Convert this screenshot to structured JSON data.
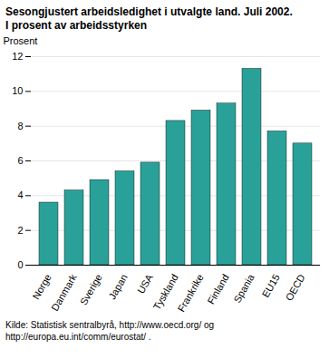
{
  "chart_data": {
    "type": "bar",
    "title": "Sesongjustert arbeidsledighet i utvalgte land. Juli 2002.",
    "subtitle": "I prosent av arbeidsstyrken",
    "y_label": "Prosent",
    "caption": "Kilde: Statistisk sentralbyrå, http://www.oecd.org/ og http://europa.eu.int/comm/eurostat/ .",
    "categories": [
      "Norge",
      "Danmark",
      "Sverige",
      "Japan",
      "USA",
      "Tyskland",
      "Frankrike",
      "Finland",
      "Spania",
      "EU15",
      "OECD"
    ],
    "values": [
      3.6,
      4.3,
      4.9,
      5.4,
      5.9,
      8.3,
      8.9,
      9.3,
      11.3,
      7.7,
      7.0
    ],
    "color": "#2aa198",
    "ylim": [
      0,
      12
    ],
    "yticks": [
      0,
      2,
      4,
      6,
      8,
      10,
      12
    ],
    "grid": true
  }
}
